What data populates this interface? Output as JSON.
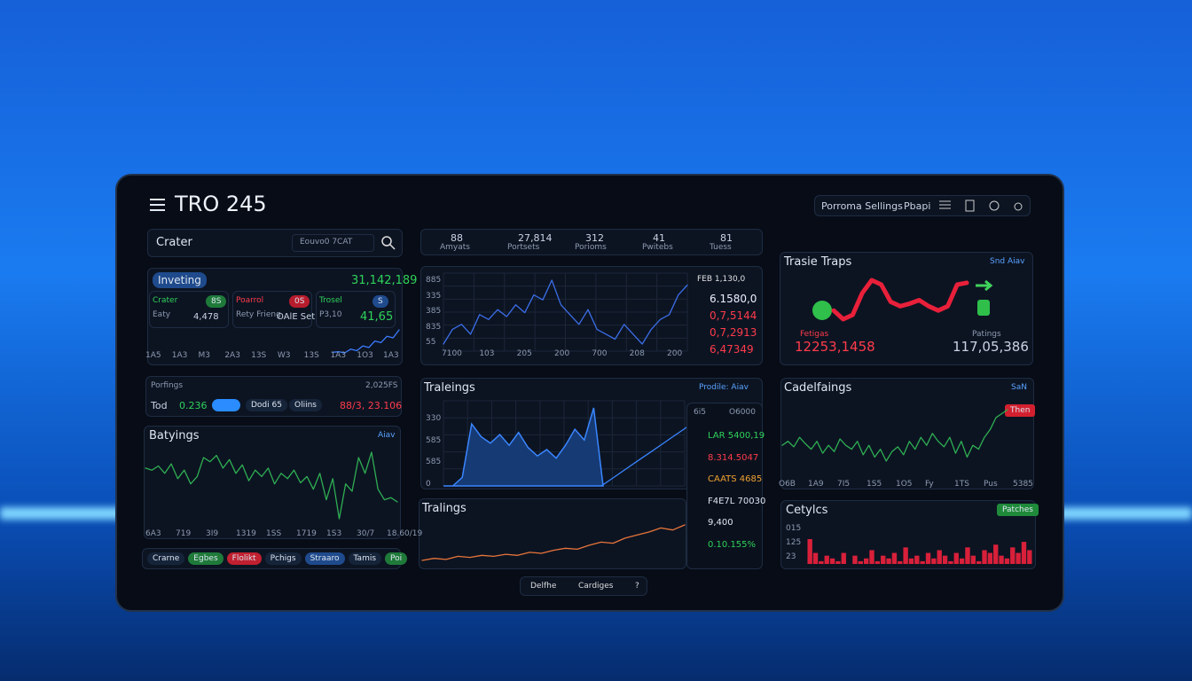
{
  "header": {
    "title": "TRO 245",
    "buttons": [
      "Porroma Sellings",
      "Pbapi"
    ]
  },
  "search": {
    "label": "Crater",
    "placeholder": "Eouvo0 7CAT"
  },
  "investing": {
    "tag": "Inveting",
    "total": "31,142,189",
    "cells": [
      {
        "name": "Crater",
        "badge": "8S",
        "label": "Eaty",
        "value": "4,478"
      },
      {
        "name": "Poarrol",
        "badge": "0S",
        "label": "Rety Frieng",
        "value": "OAlE Setree"
      },
      {
        "name": "Trosel",
        "badge": "S",
        "label": "P3,10",
        "value": "41,65"
      }
    ],
    "axis": [
      "1A5",
      "1A3",
      "M3",
      "2A3",
      "13S",
      "W3",
      "13S",
      "1A3",
      "1O3",
      "1A3"
    ],
    "line": [
      10,
      12,
      8,
      20,
      15,
      30,
      25,
      45,
      40,
      60,
      55,
      80
    ]
  },
  "portfolio": {
    "title": "Porfings",
    "total": "2,025FS",
    "label": "Tod",
    "value": "0.236",
    "chips": [
      "Dodi 65",
      "Oliins"
    ],
    "result": "88/3, 23.106"
  },
  "bettings": {
    "title": "Batyings",
    "link": "Aiav",
    "axis": [
      "6A3",
      "719",
      "3I9",
      "1319",
      "1SS",
      "1719",
      "1S3",
      "30/7",
      "18.60/19"
    ],
    "line": [
      60,
      58,
      62,
      55,
      64,
      50,
      58,
      45,
      52,
      70,
      66,
      72,
      60,
      68,
      55,
      63,
      48,
      58,
      52,
      60,
      45,
      55,
      50,
      58,
      46,
      52,
      40,
      55,
      30,
      50,
      12,
      45,
      38,
      70,
      55,
      75,
      40,
      30,
      32,
      28
    ],
    "chips": [
      "Crarne",
      "Egbes",
      "Flolikt",
      "Pchigs",
      "Straaro",
      "Tamis",
      "Poi"
    ]
  },
  "stats": [
    {
      "value": "88",
      "label": "Amyats"
    },
    {
      "value": "27,814",
      "label": "Portsets"
    },
    {
      "value": "312",
      "label": "Porioms"
    },
    {
      "value": "41",
      "label": "Pwitebs"
    },
    {
      "value": "81",
      "label": "Tuess"
    }
  ],
  "overview": {
    "yaxis": [
      "885",
      "335",
      "385",
      "835",
      "55"
    ],
    "xaxis": [
      "7100",
      "103",
      "205",
      "200",
      "700",
      "208",
      "200"
    ],
    "legend": "FEB 1,130,0",
    "prices": [
      "6.1580,0",
      "0,7,5144",
      "0,7,2913",
      "6,47349"
    ],
    "line": [
      20,
      35,
      40,
      30,
      50,
      45,
      55,
      48,
      60,
      52,
      70,
      65,
      85,
      60,
      50,
      40,
      55,
      35,
      30,
      25,
      40,
      30,
      20,
      35,
      45,
      50,
      70,
      80
    ]
  },
  "tradings": {
    "title": "Traleings",
    "link": "Prodile: Aiav",
    "yaxis": [
      "330",
      "585",
      "585",
      "0"
    ],
    "area": [
      2,
      2,
      10,
      60,
      48,
      42,
      50,
      40,
      52,
      38,
      30,
      36,
      28,
      40,
      55,
      45,
      75,
      2
    ],
    "trend": [
      2,
      10,
      18,
      26,
      34,
      42,
      50,
      58
    ],
    "tabs": [
      "6i5",
      "O6000"
    ],
    "list": [
      "LAR 5400,19",
      "8.314.5047",
      "CAATS 4685",
      "F4E7L 70030",
      "9,400",
      "0.10.155%"
    ]
  },
  "tralings": {
    "title": "Tralings",
    "line": [
      10,
      12,
      11,
      14,
      13,
      15,
      14,
      16,
      15,
      18,
      17,
      20,
      22,
      21,
      25,
      28,
      27,
      32,
      35,
      38,
      42,
      40,
      45
    ]
  },
  "footer": {
    "buttons": [
      "Delfhe",
      "Cardiges",
      "?"
    ]
  },
  "trade": {
    "title": "Trasie Traps",
    "link": "Snd Aiav",
    "left_label": "Fetigas",
    "left_value": "12253,1458",
    "right_label": "Patings",
    "right_value": "117,05,386",
    "curve": [
      40,
      30,
      35,
      60,
      75,
      70,
      50,
      45,
      48,
      52,
      45,
      40,
      45,
      70,
      72
    ]
  },
  "candles": {
    "title": "Cadelfaings",
    "link": "SaN",
    "badge": "Then",
    "axis": [
      "O6B",
      "1A9",
      "7I5",
      "1S5",
      "1O5",
      "Fy",
      "1TS",
      "Pus",
      "5385"
    ],
    "line": [
      50,
      55,
      48,
      60,
      52,
      45,
      55,
      40,
      50,
      42,
      58,
      50,
      45,
      55,
      38,
      50,
      35,
      45,
      30,
      42,
      48,
      38,
      55,
      45,
      60,
      50,
      65,
      55,
      48,
      60,
      40,
      55,
      35,
      50,
      45,
      60,
      70,
      85,
      90,
      95
    ]
  },
  "cycles": {
    "title": "Cetylcs",
    "badge": "Patches",
    "yaxis": [
      "015",
      "125",
      "23"
    ],
    "bars": [
      70,
      45,
      30,
      40,
      35,
      30,
      45,
      25,
      40,
      30,
      35,
      50,
      30,
      40,
      35,
      45,
      30,
      55,
      35,
      40,
      30,
      45,
      35,
      50,
      40,
      30,
      45,
      35,
      55,
      40,
      30,
      50,
      45,
      60,
      40,
      35,
      55,
      45,
      65,
      50
    ]
  }
}
